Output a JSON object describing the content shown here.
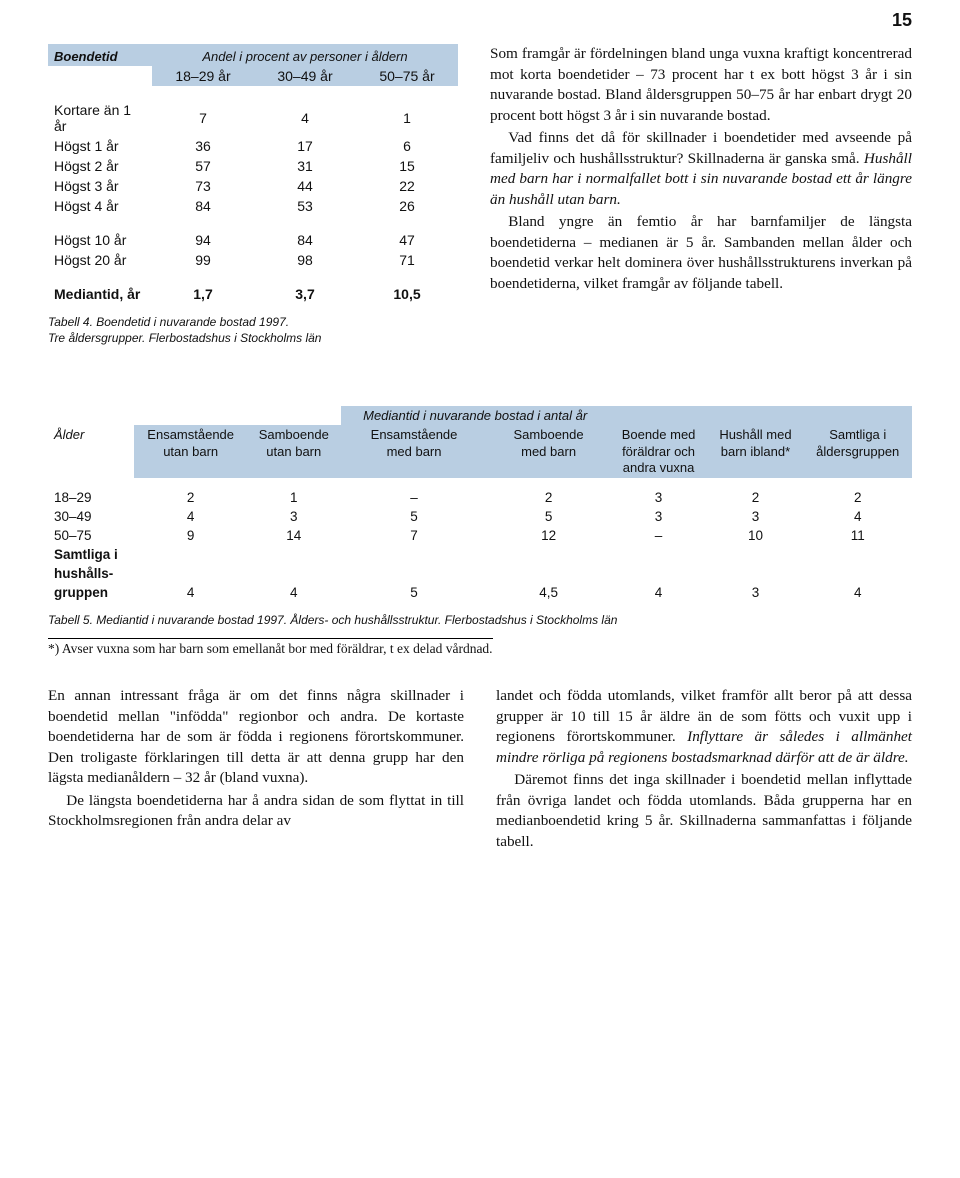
{
  "page_number": "15",
  "colors": {
    "header_bg": "#b9cee2",
    "text": "#111111",
    "bg": "#ffffff"
  },
  "table4": {
    "corner_label": "Boendetid",
    "super_header": "Andel i procent av personer i åldern",
    "col_headers": [
      "18–29 år",
      "30–49 år",
      "50–75 år"
    ],
    "rows_block1": [
      {
        "label": "Kortare än 1 år",
        "vals": [
          "7",
          "4",
          "1"
        ]
      },
      {
        "label": "Högst 1 år",
        "vals": [
          "36",
          "17",
          "6"
        ]
      },
      {
        "label": "Högst 2 år",
        "vals": [
          "57",
          "31",
          "15"
        ]
      },
      {
        "label": "Högst 3 år",
        "vals": [
          "73",
          "44",
          "22"
        ]
      },
      {
        "label": "Högst 4 år",
        "vals": [
          "84",
          "53",
          "26"
        ]
      }
    ],
    "rows_block2": [
      {
        "label": "Högst 10 år",
        "vals": [
          "94",
          "84",
          "47"
        ]
      },
      {
        "label": "Högst 20 år",
        "vals": [
          "99",
          "98",
          "71"
        ]
      }
    ],
    "median_row": {
      "label": "Mediantid, år",
      "vals": [
        "1,7",
        "3,7",
        "10,5"
      ]
    },
    "caption_line1": "Tabell 4. Boendetid i nuvarande bostad 1997.",
    "caption_line2": "Tre åldersgrupper. Flerbostadshus i Stockholms län"
  },
  "body_top": {
    "p1": "Som framgår är fördelningen bland unga vuxna kraftigt koncentrerad mot korta boendetider – 73 procent har t ex bott högst 3 år i sin nuvarande bostad. Bland åldersgruppen 50–75 år har enbart drygt 20 procent bott högst 3 år i sin nuvarande bostad.",
    "p2_a": "Vad finns det då för skillnader i boendetider med avseende på familjeliv och hushållsstruktur? Skillnaderna är ganska små. ",
    "p2_em": "Hushåll med barn har i normalfallet bott i sin nuvarande bostad ett år längre än hushåll utan barn.",
    "p3": "Bland yngre än femtio år har barnfamiljer de längsta boendetiderna – medianen är 5 år. Sambanden mellan ålder och boendetid verkar helt dominera över hushållsstrukturens inverkan på boendetiderna, vilket framgår av följande tabell."
  },
  "table5": {
    "super_header": "Mediantid i nuvarande bostad i antal år",
    "row_header_label": "Ålder",
    "col_headers": [
      {
        "l1": "Ensamstående",
        "l2": "utan barn"
      },
      {
        "l1": "Samboende",
        "l2": "utan barn"
      },
      {
        "l1": "Ensamstående",
        "l2": "med barn"
      },
      {
        "l1": "Samboende",
        "l2": "med barn"
      },
      {
        "l1": "Boende med",
        "l2": "föräldrar och",
        "l3": "andra vuxna"
      },
      {
        "l1": "Hushåll med",
        "l2": "barn ibland*"
      },
      {
        "l1": "Samtliga i",
        "l2": "åldersgruppen"
      }
    ],
    "rows": [
      {
        "label": "18–29",
        "vals": [
          "2",
          "1",
          "–",
          "2",
          "3",
          "2",
          "2"
        ]
      },
      {
        "label": "30–49",
        "vals": [
          "4",
          "3",
          "5",
          "5",
          "3",
          "3",
          "4"
        ]
      },
      {
        "label": "50–75",
        "vals": [
          "9",
          "14",
          "7",
          "12",
          "–",
          "10",
          "11"
        ]
      }
    ],
    "total_row": {
      "label_l1": "Samtliga i",
      "label_l2": "hushålls-",
      "label_l3": "gruppen",
      "vals": [
        "4",
        "4",
        "5",
        "4,5",
        "4",
        "3",
        "4"
      ]
    },
    "caption": "Tabell 5. Mediantid i nuvarande bostad 1997. Ålders- och hushållsstruktur. Flerbostadshus i Stockholms län",
    "footnote": "*) Avser vuxna som har barn som emellanåt bor med föräldrar, t ex delad vårdnad."
  },
  "body_bottom": {
    "left_p1": "En annan intressant fråga är om det finns några skillnader i boendetid mellan \"infödda\" regionbor och andra. De kortaste boendetiderna har de som är födda i regionens förortskommuner. Den troligaste förklaringen till detta är att denna grupp har den lägsta medianåldern – 32 år (bland vuxna).",
    "left_p2": "De längsta boendetiderna har å andra sidan de som flyttat in till Stockholmsregionen från andra delar av",
    "right_p1_a": "landet och födda utomlands, vilket framför allt beror på att dessa grupper är 10 till 15 år äldre än de som fötts och vuxit upp i regionens förortskommuner. ",
    "right_p1_em": "Inflyttare är således i allmänhet mindre rörliga på regionens bostadsmarknad därför att de är äldre.",
    "right_p2": "Däremot finns det inga skillnader i boendetid mellan inflyttade från övriga landet och födda utomlands. Båda grupperna har en medianboendetid kring 5 år. Skillnaderna sammanfattas i följande tabell."
  }
}
